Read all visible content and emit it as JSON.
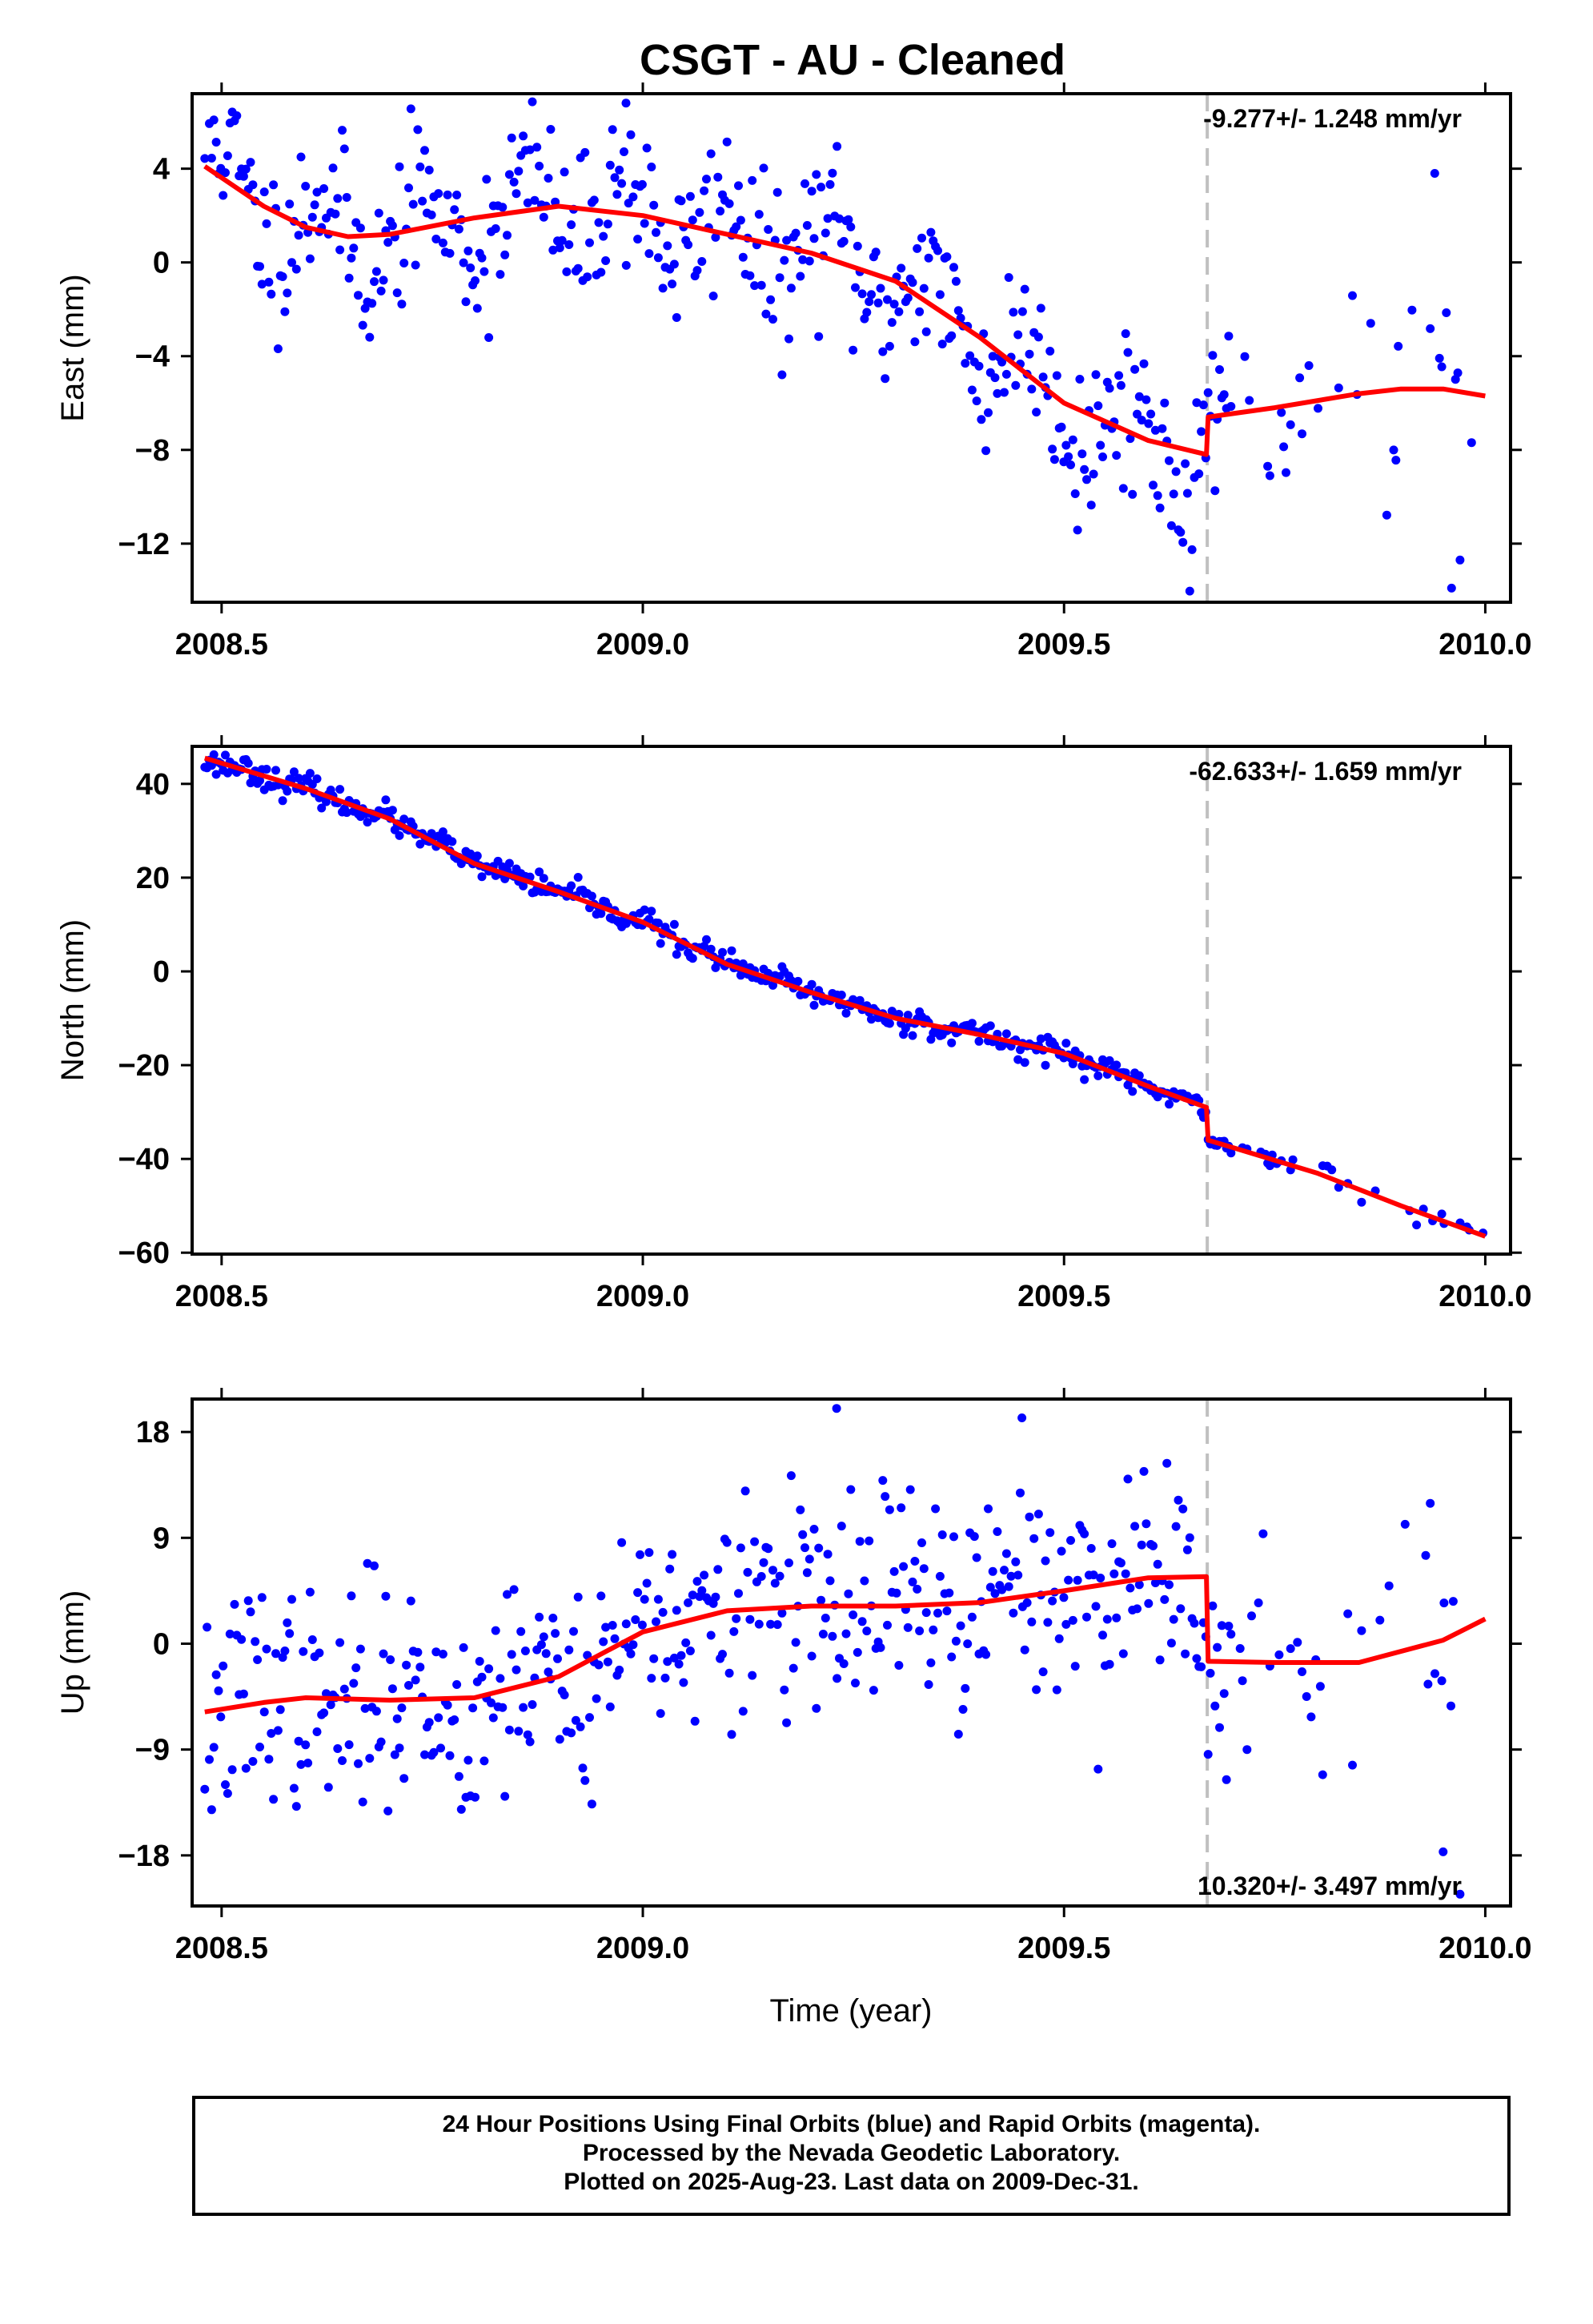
{
  "title": "CSGT  - AU - Cleaned",
  "xlabel": "Time (year)",
  "caption": [
    "24 Hour Positions Using Final Orbits (blue) and Rapid Orbits (magenta).",
    "Processed by the Nevada Geodetic Laboratory.",
    "Plotted on 2025-Aug-23. Last data on 2009-Dec-31."
  ],
  "colors": {
    "points": "#0000ff",
    "fit": "#ff0000",
    "break_line": "#c0c0c0",
    "frame": "#000000"
  },
  "chart_data": [
    {
      "type": "scatter",
      "name": "east",
      "ylabel": "East (mm)",
      "rate_label": "-9.277+/- 1.248 mm/yr",
      "rate_position": "top-right",
      "xlim": [
        2008.465,
        2010.03
      ],
      "ylim": [
        -14.5,
        7.2
      ],
      "xticks": [
        "2008.5",
        "2009.0",
        "2009.5",
        "2010.0"
      ],
      "yticks": [
        "4",
        "0",
        "−4",
        "−8",
        "−12"
      ],
      "ytick_values": [
        4,
        0,
        -4,
        -8,
        -12
      ],
      "break_x": 2009.67,
      "fit_x": [
        2008.48,
        2008.55,
        2008.6,
        2008.65,
        2008.7,
        2008.8,
        2008.9,
        2009.0,
        2009.1,
        2009.2,
        2009.3,
        2009.4,
        2009.5,
        2009.6,
        2009.669,
        2009.671,
        2009.75,
        2009.85,
        2009.9,
        2009.95,
        2010.0
      ],
      "fit_y": [
        4.1,
        2.4,
        1.5,
        1.1,
        1.2,
        1.9,
        2.4,
        2.0,
        1.2,
        0.4,
        -0.8,
        -3.2,
        -6.0,
        -7.6,
        -8.2,
        -6.6,
        -6.2,
        -5.6,
        -5.4,
        -5.4,
        -5.7
      ],
      "outliers_x": [
        2008.98,
        2009.94,
        2009.96,
        2009.97
      ],
      "outliers_y": [
        6.8,
        3.8,
        -13.9,
        -12.7
      ],
      "series": [
        {
          "name": "",
          "anchors_x": [
            2008.48,
            2008.55,
            2008.6,
            2008.65,
            2008.7,
            2008.8,
            2008.9,
            2009.0,
            2009.1,
            2009.2,
            2009.3,
            2009.4,
            2009.5,
            2009.6,
            2009.669,
            2009.671,
            2009.75,
            2009.85,
            2009.9,
            2009.95,
            2010.0
          ],
          "anchors_y": [
            4.1,
            2.4,
            1.5,
            1.1,
            1.2,
            1.9,
            2.4,
            2.0,
            1.2,
            0.4,
            -0.8,
            -3.2,
            -6.0,
            -7.6,
            -8.2,
            -6.6,
            -6.2,
            -5.6,
            -5.4,
            -5.4,
            -5.7
          ],
          "scatter_sd": 1.7,
          "wiggle_amp": 1.6,
          "wiggle_period": 0.12,
          "seed": 11
        }
      ]
    },
    {
      "type": "scatter",
      "name": "north",
      "ylabel": "North (mm)",
      "rate_label": "-62.633+/- 1.659 mm/yr",
      "rate_position": "top-right",
      "xlim": [
        2008.465,
        2010.03
      ],
      "ylim": [
        -60.3,
        48.0
      ],
      "xticks": [
        "2008.5",
        "2009.0",
        "2009.5",
        "2010.0"
      ],
      "yticks": [
        "40",
        "20",
        "0",
        "−20",
        "−40",
        "−60"
      ],
      "ytick_values": [
        40,
        20,
        0,
        -20,
        -40,
        -60
      ],
      "break_x": 2009.67,
      "fit_x": [
        2008.48,
        2008.6,
        2008.7,
        2008.8,
        2008.9,
        2009.0,
        2009.1,
        2009.2,
        2009.3,
        2009.4,
        2009.5,
        2009.6,
        2009.669,
        2009.671,
        2009.8,
        2009.9,
        2010.0
      ],
      "fit_y": [
        45.5,
        39.0,
        32.5,
        23.0,
        17.0,
        10.5,
        1.5,
        -4.5,
        -10.0,
        -13.5,
        -17.5,
        -24.5,
        -29.0,
        -36.0,
        -43.0,
        -50.0,
        -56.5
      ],
      "outliers_x": [],
      "outliers_y": [],
      "series": [
        {
          "name": "",
          "anchors_x": [
            2008.48,
            2008.6,
            2008.7,
            2008.8,
            2008.9,
            2009.0,
            2009.1,
            2009.2,
            2009.3,
            2009.4,
            2009.5,
            2009.6,
            2009.669,
            2009.671,
            2009.8,
            2009.9,
            2010.0
          ],
          "anchors_y": [
            45.5,
            39.0,
            32.5,
            23.0,
            17.0,
            10.5,
            1.5,
            -4.5,
            -10.0,
            -13.5,
            -17.5,
            -24.5,
            -29.0,
            -36.0,
            -43.0,
            -50.0,
            -56.5
          ],
          "scatter_sd": 1.3,
          "wiggle_amp": 0.6,
          "wiggle_period": 0.08,
          "seed": 23
        }
      ]
    },
    {
      "type": "scatter",
      "name": "up",
      "ylabel": "Up (mm)",
      "rate_label": "10.320+/- 3.497 mm/yr",
      "rate_position": "bottom-right",
      "xlim": [
        2008.465,
        2010.03
      ],
      "ylim": [
        -22.3,
        20.8
      ],
      "xticks": [
        "2008.5",
        "2009.0",
        "2009.5",
        "2010.0"
      ],
      "yticks": [
        "18",
        "9",
        "0",
        "−9",
        "−18"
      ],
      "ytick_values": [
        18,
        9,
        0,
        -9,
        -18
      ],
      "break_x": 2009.67,
      "fit_x": [
        2008.48,
        2008.55,
        2008.6,
        2008.7,
        2008.8,
        2008.9,
        2009.0,
        2009.1,
        2009.2,
        2009.3,
        2009.4,
        2009.5,
        2009.6,
        2009.669,
        2009.671,
        2009.75,
        2009.85,
        2009.95,
        2010.0
      ],
      "fit_y": [
        -5.8,
        -5.0,
        -4.6,
        -4.8,
        -4.6,
        -2.8,
        1.0,
        2.8,
        3.2,
        3.2,
        3.5,
        4.5,
        5.6,
        5.7,
        -1.5,
        -1.6,
        -1.6,
        0.3,
        2.1
      ],
      "outliers_x": [
        2009.23,
        2009.45,
        2009.95,
        2009.97
      ],
      "outliers_y": [
        20.0,
        19.2,
        -17.7,
        -21.3
      ],
      "series": [
        {
          "name": "",
          "anchors_x": [
            2008.48,
            2008.55,
            2008.6,
            2008.7,
            2008.8,
            2008.9,
            2009.0,
            2009.1,
            2009.2,
            2009.3,
            2009.4,
            2009.5,
            2009.6,
            2009.669,
            2009.671,
            2009.75,
            2009.85,
            2009.95,
            2010.0
          ],
          "anchors_y": [
            -5.8,
            -5.0,
            -4.6,
            -4.8,
            -4.6,
            -2.8,
            1.0,
            2.8,
            3.2,
            3.2,
            3.5,
            4.5,
            5.6,
            5.7,
            -1.5,
            -1.6,
            -1.6,
            0.3,
            2.1
          ],
          "scatter_sd": 4.6,
          "wiggle_amp": 1.5,
          "wiggle_period": 0.15,
          "seed": 37
        }
      ]
    }
  ]
}
